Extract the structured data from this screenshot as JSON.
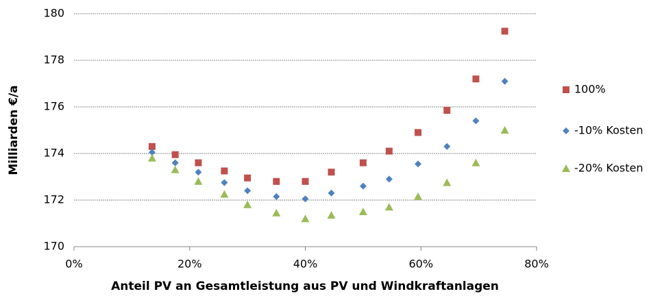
{
  "chart_data": {
    "type": "scatter",
    "xlabel": "Anteil PV an Gesamtleistung aus PV und Windkraftanlagen",
    "ylabel": "Milliarden €/a",
    "x": [
      13.5,
      17.5,
      21.5,
      26,
      30,
      35,
      40,
      44.5,
      50,
      54.5,
      59.5,
      64.5,
      69.5,
      74.5
    ],
    "series": [
      {
        "name": "100%",
        "color": "#c0504d",
        "marker": "square",
        "values": [
          174.3,
          173.95,
          173.6,
          173.25,
          172.95,
          172.8,
          172.8,
          173.2,
          173.6,
          174.1,
          174.9,
          175.85,
          177.2,
          179.25
        ]
      },
      {
        "name": "-10% Kosten",
        "color": "#4f81bd",
        "marker": "diamond",
        "values": [
          174.05,
          173.6,
          173.2,
          172.75,
          172.4,
          172.15,
          172.05,
          172.3,
          172.6,
          172.9,
          173.55,
          174.3,
          175.4,
          177.1
        ]
      },
      {
        "name": "-20% Kosten",
        "color": "#9bbb59",
        "marker": "triangle",
        "values": [
          173.8,
          173.3,
          172.8,
          172.25,
          171.8,
          171.45,
          171.2,
          171.35,
          171.5,
          171.7,
          172.15,
          172.75,
          173.6,
          175.0
        ]
      }
    ],
    "xlim": [
      0,
      80
    ],
    "xticks": [
      {
        "value": 0,
        "label": "0%"
      },
      {
        "value": 20,
        "label": "20%"
      },
      {
        "value": 40,
        "label": "40%"
      },
      {
        "value": 60,
        "label": "60%"
      },
      {
        "value": 80,
        "label": "80%"
      }
    ],
    "ylim": [
      170,
      180
    ],
    "yticks": [
      170,
      172,
      174,
      176,
      178,
      180
    ],
    "grid": true,
    "legend": "right"
  }
}
